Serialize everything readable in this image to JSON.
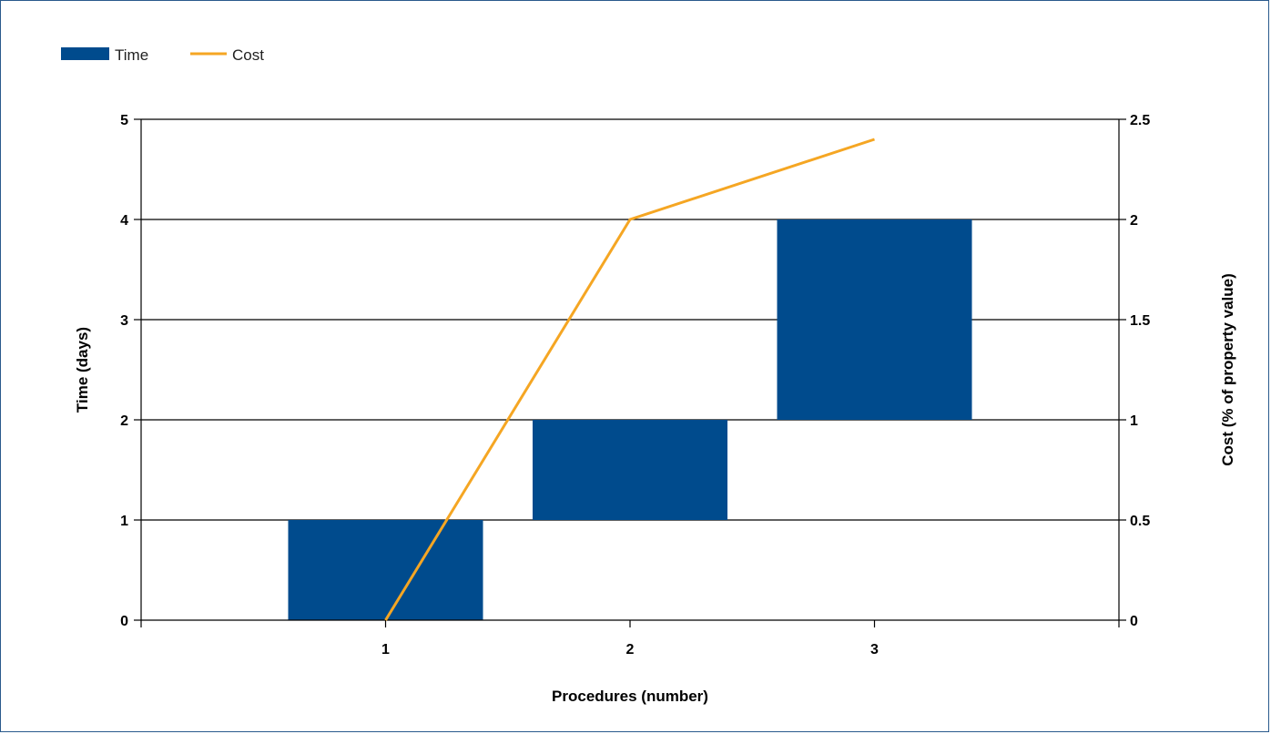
{
  "chart_data": {
    "type": "bar",
    "legend": {
      "placement": "top-left",
      "entries": [
        {
          "name": "Time",
          "kind": "bar",
          "color": "#004b8d"
        },
        {
          "name": "Cost",
          "kind": "line",
          "color": "#f5a623"
        }
      ]
    },
    "xlabel": "Procedures (number)",
    "ylabel_left": "Time (days)",
    "ylabel_right": "Cost (% of property value)",
    "x_ticks": [
      "1",
      "2",
      "3"
    ],
    "y_left_ticks": [
      "0",
      "1",
      "2",
      "3",
      "4",
      "5"
    ],
    "y_right_ticks": [
      "0",
      "0.5",
      "1",
      "1.5",
      "2",
      "2.5"
    ],
    "y_left_range": [
      0,
      5
    ],
    "y_right_range": [
      0,
      2.5
    ],
    "x_range": [
      0,
      4
    ],
    "grid": "horizontal",
    "series": [
      {
        "name": "Time",
        "type": "floating-bar",
        "axis": "left",
        "color": "#004b8d",
        "bars": [
          {
            "x": 1,
            "start": 0,
            "end": 1
          },
          {
            "x": 2,
            "start": 1,
            "end": 2
          },
          {
            "x": 3,
            "start": 2,
            "end": 4
          }
        ]
      },
      {
        "name": "Cost",
        "type": "line",
        "axis": "right",
        "color": "#f5a623",
        "points": [
          {
            "x": 1,
            "y": 0
          },
          {
            "x": 2,
            "y": 2
          },
          {
            "x": 3,
            "y": 2.4
          }
        ]
      }
    ]
  }
}
